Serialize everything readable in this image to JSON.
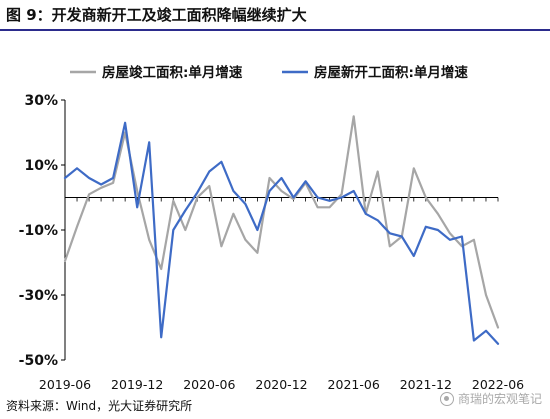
{
  "figure": {
    "title": "图 9：开发商新开工及竣工面积降幅继续扩大",
    "source": "资料来源：Wind，光大证券研究所",
    "watermark": "商瑞的宏观笔记"
  },
  "colors": {
    "title_rule": "#2b2b8c",
    "completion": "#a6a6a6",
    "new_start": "#3e6bc6",
    "axis": "#000000"
  },
  "chart_data": {
    "type": "line",
    "title": "",
    "xlabel": "",
    "ylabel": "",
    "ylim": [
      -50,
      30
    ],
    "y_ticks": [
      30,
      10,
      -10,
      -30,
      -50
    ],
    "y_tick_labels": [
      "30%",
      "10%",
      "-10%",
      "-30%",
      "-50%"
    ],
    "x_tick_labels": [
      "2019-06",
      "2019-12",
      "2020-06",
      "2020-12",
      "2021-06",
      "2021-12",
      "2022-06"
    ],
    "x_range": [
      "2019-06",
      "2022-06"
    ],
    "grid": false,
    "legend_position": "top",
    "series": [
      {
        "name": "房屋竣工面积:单月增速",
        "color": "#a6a6a6",
        "points": [
          [
            "2019-06",
            -19.5
          ],
          [
            "2019-07",
            -9
          ],
          [
            "2019-08",
            1
          ],
          [
            "2019-09",
            3
          ],
          [
            "2019-10",
            4.5
          ],
          [
            "2019-11",
            20
          ],
          [
            "2019-12",
            2
          ],
          [
            "2020-01",
            -13
          ],
          [
            "2020-02",
            -22
          ],
          [
            "2020-03",
            -1
          ],
          [
            "2020-04",
            -10
          ],
          [
            "2020-05",
            0
          ],
          [
            "2020-06",
            3.5
          ],
          [
            "2020-07",
            -15
          ],
          [
            "2020-08",
            -5
          ],
          [
            "2020-09",
            -13
          ],
          [
            "2020-10",
            -17
          ],
          [
            "2020-11",
            6
          ],
          [
            "2020-12",
            2
          ],
          [
            "2021-01",
            -0.5
          ],
          [
            "2021-02",
            4.5
          ],
          [
            "2021-03",
            -3
          ],
          [
            "2021-04",
            -3
          ],
          [
            "2021-05",
            1
          ],
          [
            "2021-06",
            25
          ],
          [
            "2021-07",
            -5
          ],
          [
            "2021-08",
            8
          ],
          [
            "2021-09",
            -15
          ],
          [
            "2021-10",
            -12
          ],
          [
            "2021-11",
            9
          ],
          [
            "2021-12",
            0
          ],
          [
            "2022-01",
            -5
          ],
          [
            "2022-02",
            -11
          ],
          [
            "2022-03",
            -15
          ],
          [
            "2022-04",
            -13
          ],
          [
            "2022-05",
            -30
          ],
          [
            "2022-06",
            -40
          ]
        ]
      },
      {
        "name": "房屋新开工面积:单月增速",
        "color": "#3e6bc6",
        "points": [
          [
            "2019-06",
            6
          ],
          [
            "2019-07",
            9
          ],
          [
            "2019-08",
            6
          ],
          [
            "2019-09",
            4
          ],
          [
            "2019-10",
            6
          ],
          [
            "2019-11",
            23
          ],
          [
            "2019-12",
            -3
          ],
          [
            "2020-01",
            17
          ],
          [
            "2020-02",
            -43
          ],
          [
            "2020-03",
            -10
          ],
          [
            "2020-04",
            -4
          ],
          [
            "2020-05",
            1.5
          ],
          [
            "2020-06",
            8
          ],
          [
            "2020-07",
            11
          ],
          [
            "2020-08",
            2
          ],
          [
            "2020-09",
            -2
          ],
          [
            "2020-10",
            -10
          ],
          [
            "2020-11",
            2
          ],
          [
            "2020-12",
            6
          ],
          [
            "2021-01",
            0
          ],
          [
            "2021-02",
            5
          ],
          [
            "2021-03",
            0
          ],
          [
            "2021-04",
            -1
          ],
          [
            "2021-05",
            0
          ],
          [
            "2021-06",
            2
          ],
          [
            "2021-07",
            -5
          ],
          [
            "2021-08",
            -7
          ],
          [
            "2021-09",
            -11
          ],
          [
            "2021-10",
            -12
          ],
          [
            "2021-11",
            -18
          ],
          [
            "2021-12",
            -9
          ],
          [
            "2022-01",
            -10
          ],
          [
            "2022-02",
            -13
          ],
          [
            "2022-03",
            -12
          ],
          [
            "2022-04",
            -44
          ],
          [
            "2022-05",
            -41
          ],
          [
            "2022-06",
            -45
          ]
        ]
      }
    ]
  }
}
